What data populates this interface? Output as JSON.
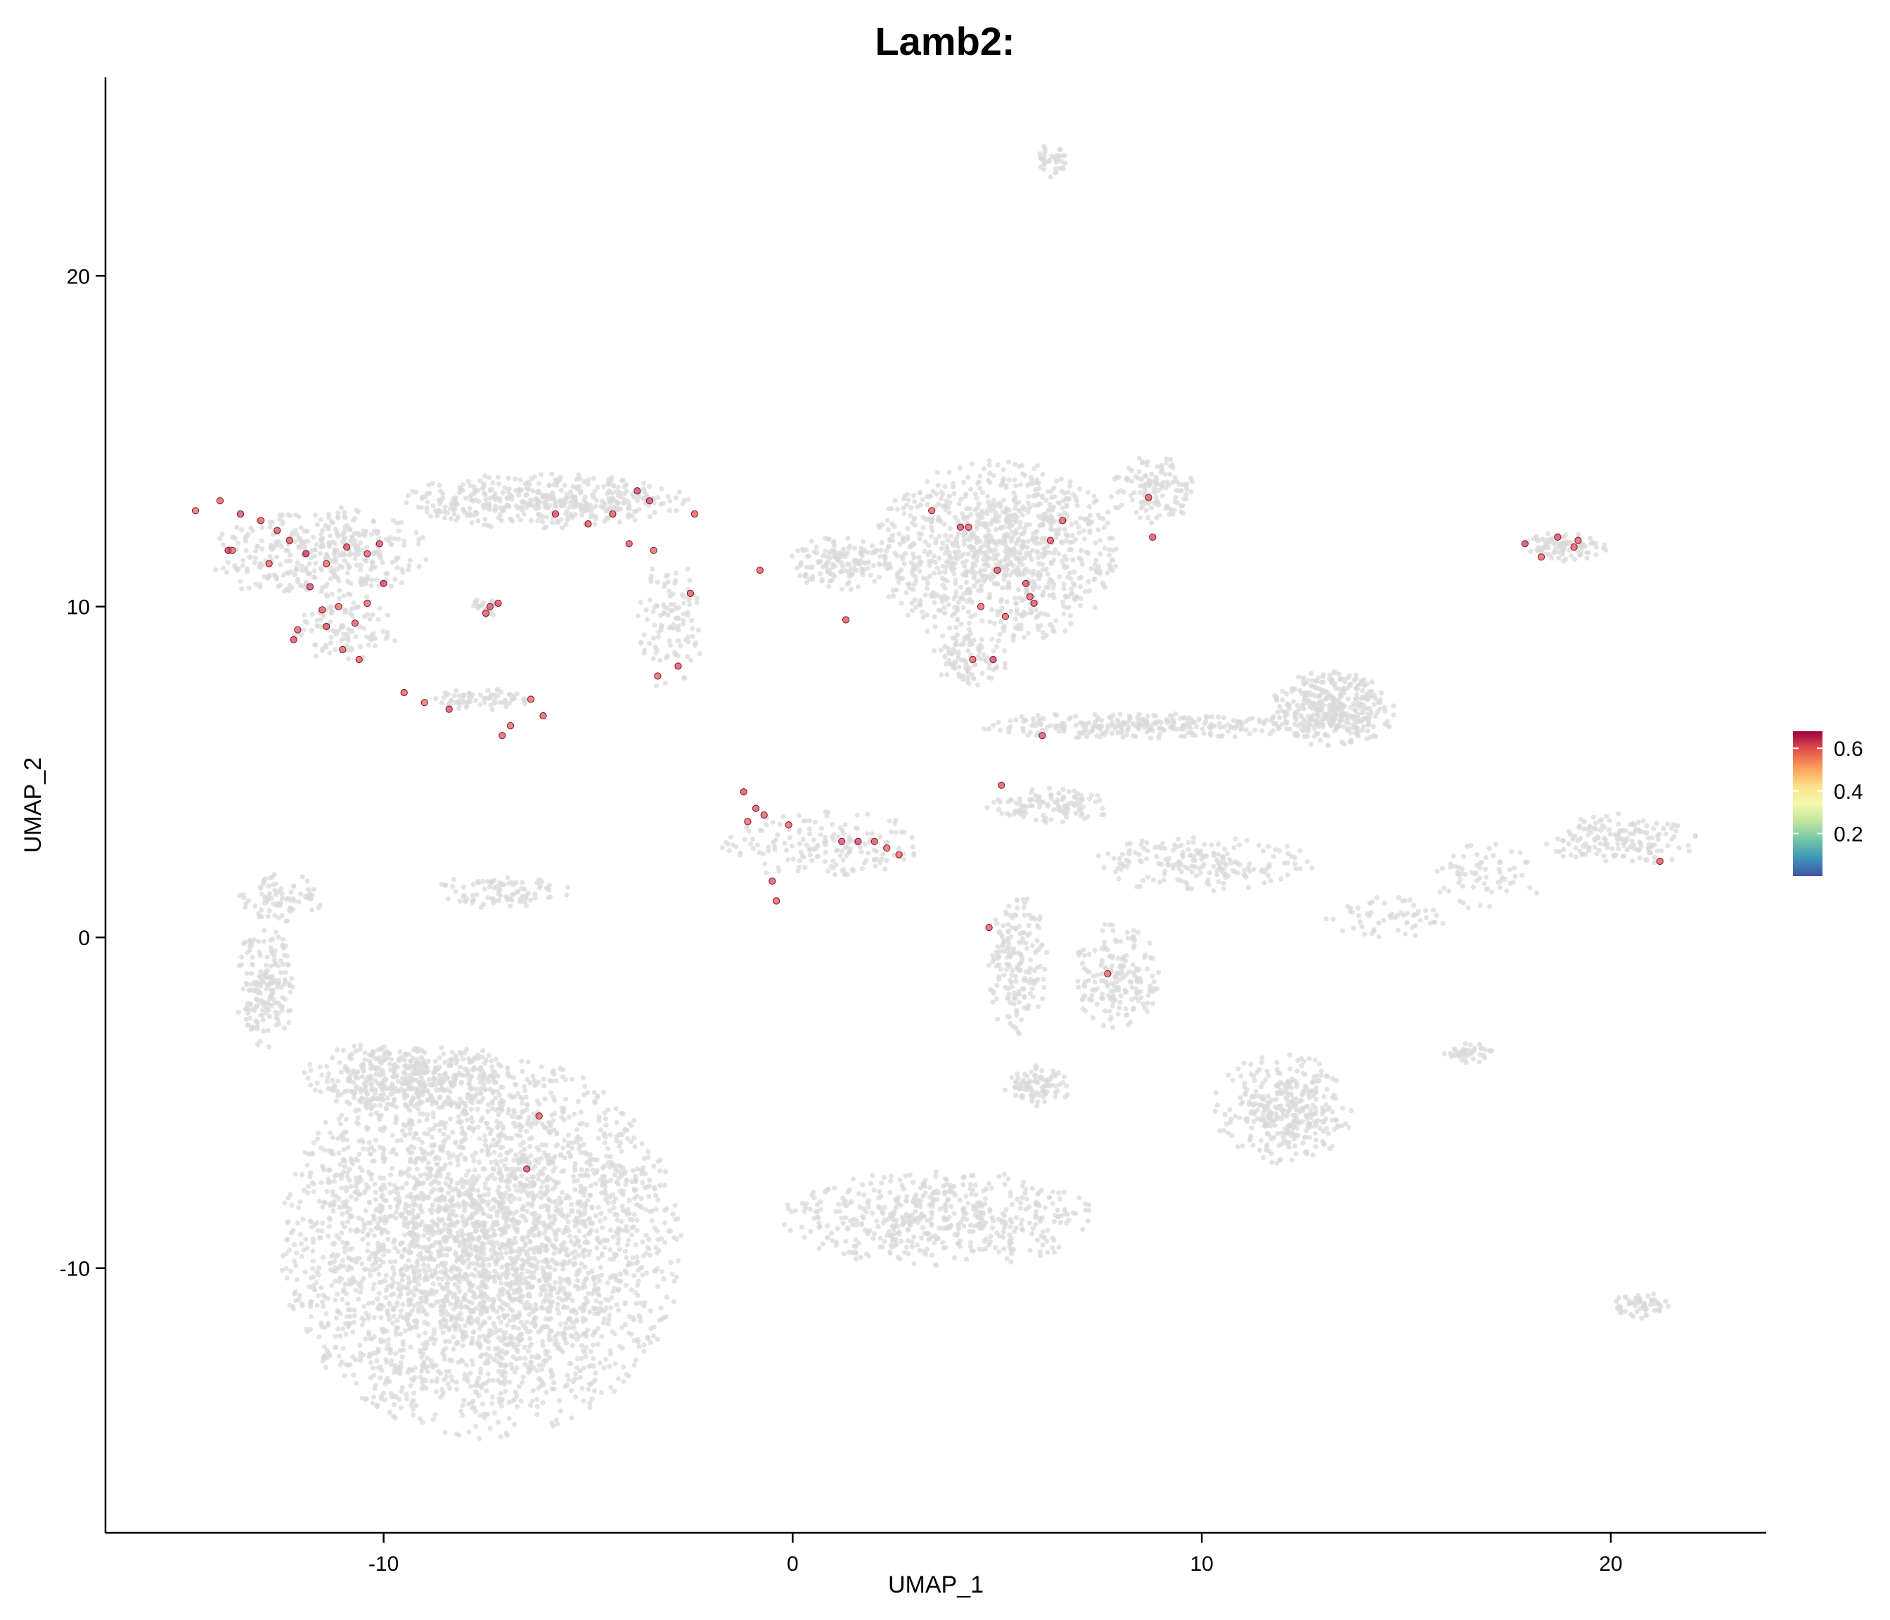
{
  "chart_data": {
    "type": "scatter",
    "title": "Lamb2:",
    "xlabel": "UMAP_1",
    "ylabel": "UMAP_2",
    "xlim": [
      -16.8,
      23.8
    ],
    "ylim": [
      -18,
      26
    ],
    "x_ticks": [
      -10,
      0,
      10,
      20
    ],
    "y_ticks": [
      -10,
      0,
      10,
      20
    ],
    "grid": false,
    "background_color": "#d9d9d9",
    "colorbar": {
      "placement": "right",
      "ticks": [
        "0.2",
        "0.4",
        "0.6"
      ],
      "min": 0.0,
      "max": 0.68,
      "palette": "Spectral",
      "colors": [
        "#3f54a4",
        "#3d95b9",
        "#72c6a6",
        "#c0e59f",
        "#f3f9ab",
        "#fedf8b",
        "#fb9d59",
        "#e2504a",
        "#9e0142"
      ]
    },
    "clusters": [
      {
        "label": "",
        "cx": -7.6,
        "cy": -9.3,
        "rx": 4.7,
        "ry": 5.6,
        "n": 3400
      },
      {
        "label": "",
        "cx": -9.4,
        "cy": -4.2,
        "rx": 2.6,
        "ry": 1.0,
        "n": 420
      },
      {
        "label": "",
        "cx": -12.9,
        "cy": -1.5,
        "rx": 0.7,
        "ry": 1.8,
        "n": 180
      },
      {
        "label": "",
        "cx": -12.5,
        "cy": 1.2,
        "rx": 1.0,
        "ry": 0.7,
        "n": 80
      },
      {
        "label": "",
        "cx": 3.6,
        "cy": -8.5,
        "rx": 3.7,
        "ry": 1.4,
        "n": 520
      },
      {
        "label": "",
        "cx": 5.0,
        "cy": 11.6,
        "rx": 2.9,
        "ry": 2.7,
        "n": 1000
      },
      {
        "label": "",
        "cx": 4.3,
        "cy": 8.4,
        "rx": 0.9,
        "ry": 0.8,
        "n": 90
      },
      {
        "label": "",
        "cx": 8.8,
        "cy": 13.5,
        "rx": 1.0,
        "ry": 1.0,
        "n": 130
      },
      {
        "label": "",
        "cx": 6.3,
        "cy": 23.5,
        "rx": 0.4,
        "ry": 0.5,
        "n": 40
      },
      {
        "label": "",
        "cx": -11.6,
        "cy": 11.6,
        "rx": 2.6,
        "ry": 1.4,
        "n": 380
      },
      {
        "label": "",
        "cx": -11.0,
        "cy": 9.3,
        "rx": 1.3,
        "ry": 0.9,
        "n": 100
      },
      {
        "label": "",
        "cx": -6.1,
        "cy": 13.2,
        "rx": 3.4,
        "ry": 0.8,
        "n": 420
      },
      {
        "label": "",
        "cx": -7.5,
        "cy": 10.0,
        "rx": 0.3,
        "ry": 0.3,
        "n": 25
      },
      {
        "label": "",
        "cx": -7.6,
        "cy": 7.2,
        "rx": 1.2,
        "ry": 0.3,
        "n": 70
      },
      {
        "label": "",
        "cx": -7.1,
        "cy": 1.4,
        "rx": 1.6,
        "ry": 0.5,
        "n": 90
      },
      {
        "label": "",
        "cx": 1.2,
        "cy": 11.3,
        "rx": 1.2,
        "ry": 0.8,
        "n": 140
      },
      {
        "label": "",
        "cx": -3.0,
        "cy": 9.5,
        "rx": 0.8,
        "ry": 2.0,
        "n": 110
      },
      {
        "label": "",
        "cx": 0.8,
        "cy": 2.8,
        "rx": 2.5,
        "ry": 1.0,
        "n": 170
      },
      {
        "label": "",
        "cx": 13.2,
        "cy": 6.9,
        "rx": 1.5,
        "ry": 1.1,
        "n": 380
      },
      {
        "label": "",
        "cx": 8.5,
        "cy": 6.4,
        "rx": 3.8,
        "ry": 0.4,
        "n": 260
      },
      {
        "label": "",
        "cx": 6.3,
        "cy": 4.0,
        "rx": 1.5,
        "ry": 0.5,
        "n": 110
      },
      {
        "label": "",
        "cx": 10.0,
        "cy": 2.2,
        "rx": 2.7,
        "ry": 0.8,
        "n": 190
      },
      {
        "label": "",
        "cx": 5.5,
        "cy": -0.9,
        "rx": 0.7,
        "ry": 2.2,
        "n": 180
      },
      {
        "label": "",
        "cx": 7.9,
        "cy": -1.2,
        "rx": 1.0,
        "ry": 1.6,
        "n": 180
      },
      {
        "label": "",
        "cx": 12.0,
        "cy": -5.2,
        "rx": 1.7,
        "ry": 1.6,
        "n": 340
      },
      {
        "label": "",
        "cx": 6.0,
        "cy": -4.5,
        "rx": 0.8,
        "ry": 0.6,
        "n": 90
      },
      {
        "label": "",
        "cx": 18.8,
        "cy": 11.8,
        "rx": 1.1,
        "ry": 0.4,
        "n": 90
      },
      {
        "label": "",
        "cx": 20.3,
        "cy": 2.9,
        "rx": 1.8,
        "ry": 0.8,
        "n": 160
      },
      {
        "label": "",
        "cx": 17.0,
        "cy": 1.8,
        "rx": 1.4,
        "ry": 1.0,
        "n": 70
      },
      {
        "label": "",
        "cx": 14.5,
        "cy": 0.6,
        "rx": 1.5,
        "ry": 0.6,
        "n": 60
      },
      {
        "label": "",
        "cx": 16.5,
        "cy": -3.5,
        "rx": 0.6,
        "ry": 0.3,
        "n": 40
      },
      {
        "label": "",
        "cx": 20.7,
        "cy": -11.1,
        "rx": 0.7,
        "ry": 0.4,
        "n": 60
      }
    ],
    "expressing_points": {
      "x": [
        -14.6,
        -14.0,
        -13.5,
        -13.0,
        -13.8,
        -12.6,
        -12.3,
        -11.9,
        -11.4,
        -10.9,
        -10.4,
        -10.1,
        -13.7,
        -12.8,
        -11.8,
        -11.1,
        -10.0,
        -12.1,
        -11.4,
        -11.0,
        -10.6,
        -12.2,
        -11.5,
        -10.7,
        -10.4,
        -9.5,
        -9.0,
        -8.4,
        -7.4,
        -7.5,
        -7.2,
        -6.4,
        -6.1,
        -6.9,
        -7.1,
        -5.8,
        -5.0,
        -4.4,
        -3.8,
        -3.4,
        -2.4,
        -4.0,
        -3.5,
        -2.5,
        -3.3,
        -2.8,
        -0.8,
        -1.2,
        -0.9,
        -0.7,
        -1.1,
        -0.1,
        1.3,
        1.6,
        2.0,
        2.3,
        2.6,
        -0.5,
        -0.4,
        1.2,
        3.4,
        4.1,
        4.4,
        5.0,
        5.7,
        6.3,
        6.6,
        4.6,
        5.2,
        5.9,
        4.3,
        4.9,
        5.1,
        4.8,
        7.7,
        8.7,
        8.8,
        17.9,
        18.3,
        18.7,
        19.1,
        19.2,
        21.2,
        -6.2,
        -6.5,
        5.8,
        6.1
      ],
      "y": [
        12.9,
        13.2,
        12.8,
        12.6,
        11.7,
        12.3,
        12.0,
        11.6,
        11.3,
        11.8,
        11.6,
        11.9,
        11.7,
        11.3,
        10.6,
        10.0,
        10.7,
        9.3,
        9.4,
        8.7,
        8.4,
        9.0,
        9.9,
        9.5,
        10.1,
        7.4,
        7.1,
        6.9,
        10.0,
        9.8,
        10.1,
        7.2,
        6.7,
        6.4,
        6.1,
        12.8,
        12.5,
        12.8,
        13.5,
        11.7,
        12.8,
        11.9,
        13.2,
        10.4,
        7.9,
        8.2,
        11.1,
        4.4,
        3.9,
        3.7,
        3.5,
        3.4,
        9.6,
        2.9,
        2.9,
        2.7,
        2.5,
        1.7,
        1.1,
        2.9,
        12.9,
        12.4,
        8.4,
        11.1,
        10.7,
        12.0,
        12.6,
        10.0,
        9.7,
        10.1,
        12.4,
        8.4,
        4.6,
        0.3,
        -1.1,
        13.3,
        12.1,
        11.9,
        11.5,
        12.1,
        11.8,
        12.0,
        2.3,
        -5.4,
        -7.0,
        10.3,
        6.1
      ],
      "values": [
        0.58,
        0.6,
        0.62,
        0.59,
        0.63,
        0.61,
        0.6,
        0.64,
        0.58,
        0.62,
        0.6,
        0.61,
        0.59,
        0.6,
        0.62,
        0.58,
        0.63,
        0.6,
        0.61,
        0.59,
        0.6,
        0.62,
        0.6,
        0.61,
        0.59,
        0.6,
        0.58,
        0.61,
        0.62,
        0.6,
        0.61,
        0.59,
        0.6,
        0.58,
        0.6,
        0.62,
        0.61,
        0.6,
        0.63,
        0.59,
        0.6,
        0.61,
        0.62,
        0.6,
        0.59,
        0.61,
        0.6,
        0.62,
        0.61,
        0.6,
        0.59,
        0.6,
        0.61,
        0.62,
        0.6,
        0.59,
        0.6,
        0.61,
        0.6,
        0.62,
        0.6,
        0.61,
        0.59,
        0.6,
        0.62,
        0.61,
        0.6,
        0.59,
        0.6,
        0.61,
        0.6,
        0.62,
        0.61,
        0.6,
        0.59,
        0.6,
        0.61,
        0.62,
        0.6,
        0.61,
        0.59,
        0.6,
        0.61,
        0.6,
        0.62,
        0.6,
        0.61
      ]
    }
  }
}
